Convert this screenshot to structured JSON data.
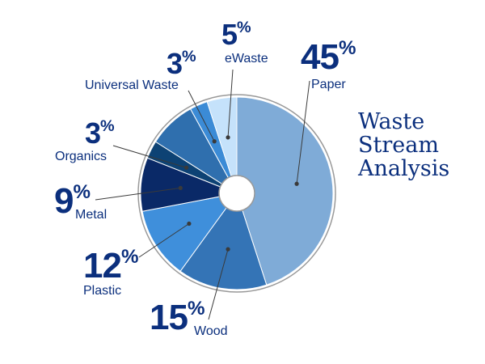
{
  "chart_data": {
    "type": "pie",
    "style": "donut",
    "title_lines": [
      "Waste",
      "Stream",
      "Analysis"
    ],
    "slices": [
      {
        "name": "Paper",
        "percent_label": "45",
        "value": 45,
        "color": "#7fabd7"
      },
      {
        "name": "Wood",
        "percent_label": "15",
        "value": 15,
        "color": "#3474b6"
      },
      {
        "name": "Plastic",
        "percent_label": "12",
        "value": 12,
        "color": "#3f8fdb"
      },
      {
        "name": "Metal",
        "percent_label": "9",
        "value": 9,
        "color": "#0a2967"
      },
      {
        "name": "Organics",
        "percent_label": "3",
        "value": 3,
        "color": "#0d4274"
      },
      {
        "name": "Universal Waste",
        "percent_label": "3",
        "value": 3,
        "color": "#3b8bd6"
      },
      {
        "name": "eWaste",
        "percent_label": "5",
        "value": 5,
        "color": "#c5e2fb"
      }
    ],
    "grey_slice": {
      "color": "#2f6fae"
    },
    "outline_color": "#999999",
    "leader_color": "#3a3a3a"
  },
  "percent_sign": "%"
}
